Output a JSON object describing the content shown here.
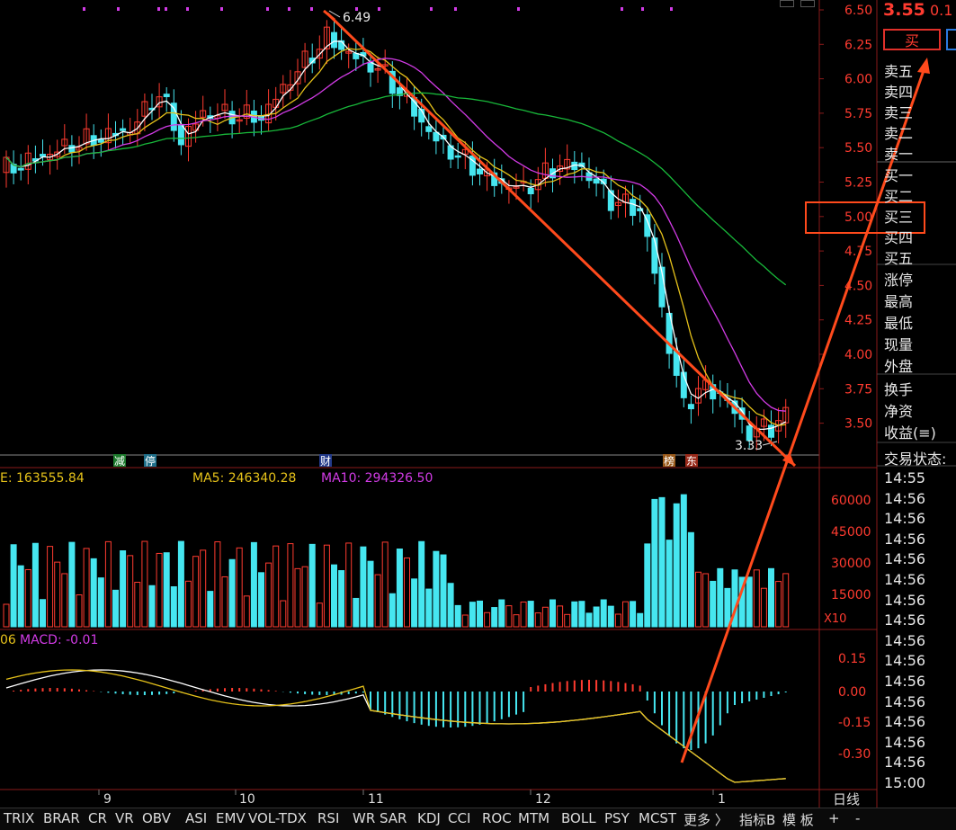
{
  "quote": {
    "price": "3.55",
    "change": "0.1"
  },
  "price_axis": [
    "6.50",
    "6.25",
    "6.00",
    "5.75",
    "5.50",
    "5.25",
    "5.00",
    "4.75",
    "4.50",
    "4.25",
    "4.00",
    "3.75",
    "3.50"
  ],
  "vol_axis": [
    "60000",
    "45000",
    "30000",
    "15000"
  ],
  "vol_multiplier": "X10",
  "macd_axis": [
    "0.15",
    "0.00",
    "-0.15",
    "-0.30"
  ],
  "annotations": {
    "high": "6.49",
    "low": "3.33"
  },
  "markers": [
    "减",
    "停",
    "财",
    "榜",
    "东"
  ],
  "vol_legend": {
    "vol": "E: 163555.84",
    "ma5": "MA5: 246340.28",
    "ma10": "MA10: 294326.50"
  },
  "macd_legend": {
    "left": "06",
    "macd": "MACD: -0.01"
  },
  "months": [
    "9",
    "10",
    "11",
    "12",
    "1"
  ],
  "period": "日线",
  "buy_button": "买",
  "order_book": {
    "sells": [
      "卖五",
      "卖四",
      "卖三",
      "卖二",
      "卖一"
    ],
    "buys": [
      "买一",
      "买二",
      "买三",
      "买四",
      "买五"
    ]
  },
  "stats": [
    "涨停",
    "最高",
    "最低",
    "现量",
    "外盘"
  ],
  "stats2": [
    "换手",
    "净资",
    "收益(≡)"
  ],
  "trade_status": "交易状态:",
  "times": [
    "14:55",
    "14:56",
    "14:56",
    "14:56",
    "14:56",
    "14:56",
    "14:56",
    "14:56",
    "14:56",
    "14:56",
    "14:56",
    "14:56",
    "14:56",
    "14:56",
    "14:56",
    "15:00"
  ],
  "indicator_tabs": [
    "TRIX",
    "BRAR",
    "CR",
    "VR",
    "OBV",
    "ASI",
    "EMV",
    "VOL-TDX",
    "RSI",
    "WR",
    "SAR",
    "KDJ",
    "CCI",
    "ROC",
    "MTM",
    "BOLL",
    "PSY",
    "MCST",
    "更多 〉",
    "指标B",
    "模 板",
    "+",
    "-"
  ],
  "colors": {
    "up": "#ff3b30",
    "down": "#46e6f0",
    "ma_white": "#ffffff",
    "ma_yellow": "#e6c21a",
    "ma_magenta": "#d23be6",
    "ma_green": "#18b83a",
    "arrow": "#ff4a1c"
  }
}
